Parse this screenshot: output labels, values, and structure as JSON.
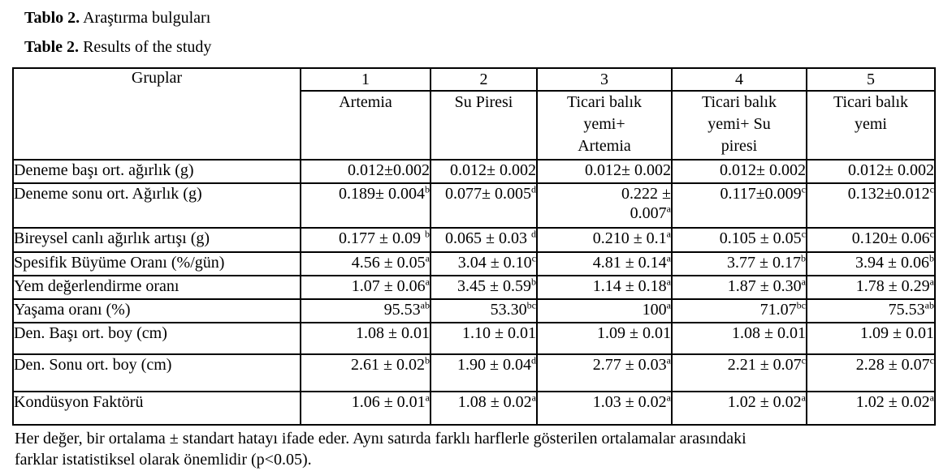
{
  "captions": {
    "tr_label": "Tablo 2.",
    "tr_text": " Araştırma bulguları",
    "en_label": "Table 2.",
    "en_text": " Results of the study"
  },
  "table": {
    "corner_header": "Gruplar",
    "group_numbers": [
      "1",
      "2",
      "3",
      "4",
      "5"
    ],
    "group_names": [
      "Artemia",
      "Su Piresi",
      "Ticari balık\nyemi+\nArtemia",
      "Ticari balık\nyemi+ Su\npiresi",
      "Ticari balık\nyemi"
    ],
    "rows": [
      {
        "label": "Deneme başı ort. ağırlık (g)",
        "values": [
          {
            "v": "0.012±0.002",
            "s": ""
          },
          {
            "v": "0.012± 0.002",
            "s": ""
          },
          {
            "v": "0.012± 0.002",
            "s": ""
          },
          {
            "v": "0.012± 0.002",
            "s": ""
          },
          {
            "v": "0.012± 0.002",
            "s": ""
          }
        ]
      },
      {
        "label": "Deneme sonu ort. Ağırlık (g)",
        "values": [
          {
            "v": "0.189± 0.004",
            "s": "b"
          },
          {
            "v": "0.077± 0.005",
            "s": "d"
          },
          {
            "v": "0.222 ±\n0.007",
            "s": "a"
          },
          {
            "v": "0.117±0.009",
            "s": "c"
          },
          {
            "v": "0.132±0.012",
            "s": "c"
          }
        ]
      },
      {
        "label": "Bireysel canlı ağırlık artışı (g)",
        "values": [
          {
            "v": "0.177 ± 0.09 ",
            "s": "b"
          },
          {
            "v": "0.065 ± 0.03 ",
            "s": "d"
          },
          {
            "v": "0.210 ± 0.1",
            "s": "a"
          },
          {
            "v": "0.105 ± 0.05",
            "s": "c"
          },
          {
            "v": "0.120± 0.06",
            "s": "c"
          }
        ]
      },
      {
        "label": "Spesifik Büyüme Oranı (%/gün)",
        "values": [
          {
            "v": "4.56 ± 0.05",
            "s": "a"
          },
          {
            "v": "3.04 ± 0.10",
            "s": "c"
          },
          {
            "v": "4.81 ± 0.14",
            "s": "a"
          },
          {
            "v": "3.77 ± 0.17",
            "s": "b"
          },
          {
            "v": "3.94 ± 0.06",
            "s": "b"
          }
        ]
      },
      {
        "label": "Yem değerlendirme oranı",
        "values": [
          {
            "v": "1.07 ± 0.06",
            "s": "a"
          },
          {
            "v": "3.45 ± 0.59",
            "s": "b"
          },
          {
            "v": "1.14 ± 0.18",
            "s": "a"
          },
          {
            "v": "1.87 ± 0.30",
            "s": "a"
          },
          {
            "v": "1.78 ± 0.29",
            "s": "a"
          }
        ]
      },
      {
        "label": "Yaşama oranı (%)",
        "values": [
          {
            "v": "95.53",
            "s": "ab"
          },
          {
            "v": "53.30",
            "s": "bc"
          },
          {
            "v": "100",
            "s": "a"
          },
          {
            "v": "71.07",
            "s": "bc"
          },
          {
            "v": "75.53",
            "s": "ab"
          }
        ]
      },
      {
        "label": "Den. Başı ort. boy (cm)",
        "values": [
          {
            "v": "1.08 ± 0.01",
            "s": ""
          },
          {
            "v": "1.10 ± 0.01",
            "s": ""
          },
          {
            "v": "1.09 ± 0.01",
            "s": ""
          },
          {
            "v": "1.08 ± 0.01",
            "s": ""
          },
          {
            "v": "1.09 ± 0.01",
            "s": ""
          }
        ]
      },
      {
        "label": "Den. Sonu ort. boy (cm)",
        "values": [
          {
            "v": "2.61 ± 0.02",
            "s": "b"
          },
          {
            "v": "1.90 ± 0.04",
            "s": "d"
          },
          {
            "v": "2.77 ± 0.03",
            "s": "a"
          },
          {
            "v": "2.21 ± 0.07",
            "s": "c"
          },
          {
            "v": "2.28 ± 0.07",
            "s": "c"
          }
        ]
      },
      {
        "label": "Kondüsyon Faktörü",
        "values": [
          {
            "v": "1.06 ± 0.01",
            "s": "a"
          },
          {
            "v": "1.08 ± 0.02",
            "s": "a"
          },
          {
            "v": "1.03 ± 0.02",
            "s": "a"
          },
          {
            "v": "1.02 ± 0.02",
            "s": "a"
          },
          {
            "v": "1.02 ± 0.02",
            "s": "a"
          }
        ]
      }
    ]
  },
  "footnote": {
    "lines": [
      "Her değer, bir ortalama ± standart hatayı ifade eder. Aynı satırda farklı harflerle gösterilen ortalamalar arasındaki",
      "farklar istatistiksel olarak önemlidir (p<0.05)."
    ]
  },
  "colors": {
    "text": "#000000",
    "background": "#ffffff",
    "border": "#000000"
  }
}
